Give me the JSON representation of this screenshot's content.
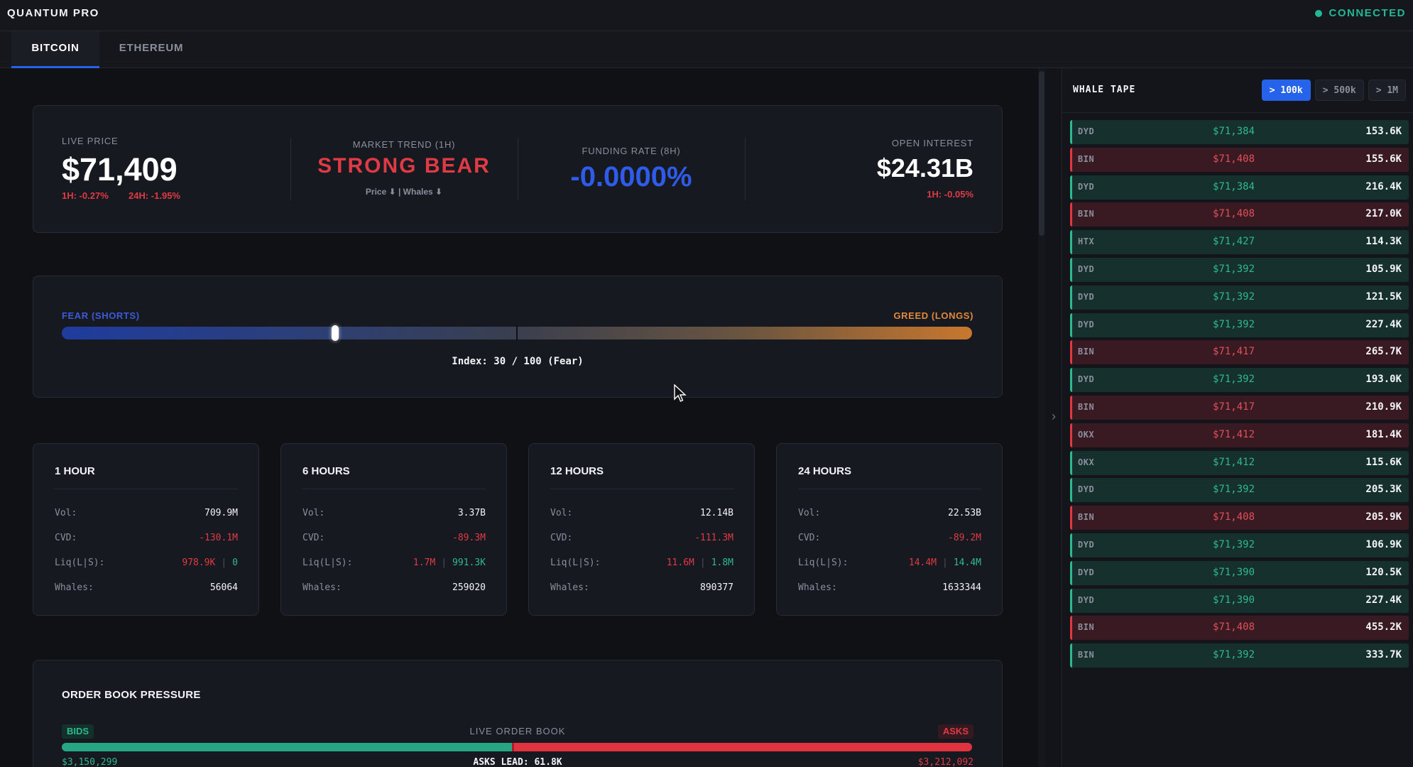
{
  "app": {
    "title": "QUANTUM PRO",
    "status": "CONNECTED"
  },
  "tabs": [
    {
      "label": "BITCOIN",
      "active": true
    },
    {
      "label": "ETHEREUM",
      "active": false
    }
  ],
  "stats": {
    "live_price_label": "LIVE PRICE",
    "live_price": "$71,409",
    "change_1h": "1H: -0.27%",
    "change_24h": "24H: -1.95%",
    "trend_label": "MARKET TREND (1H)",
    "trend": "STRONG BEAR",
    "trend_sub": "Price ⬇ | Whales ⬇",
    "funding_label": "FUNDING RATE (8H)",
    "funding": "-0.0000%",
    "oi_label": "OPEN INTEREST",
    "oi": "$24.31B",
    "oi_change": "1H: -0.05%"
  },
  "sentiment": {
    "fear_label": "FEAR (SHORTS)",
    "greed_label": "GREED (LONGS)",
    "index_text": "Index: 30 / 100 (Fear)",
    "index_value": 30
  },
  "timeframes": [
    {
      "title": "1 HOUR",
      "vol_key": "Vol:",
      "vol": "709.9M",
      "cvd_key": "CVD:",
      "cvd": "-130.1M",
      "liq_key": "Liq(L|S):",
      "liq_long": "978.9K",
      "liq_short": "0",
      "whales_key": "Whales:",
      "whales": "56064"
    },
    {
      "title": "6 HOURS",
      "vol_key": "Vol:",
      "vol": "3.37B",
      "cvd_key": "CVD:",
      "cvd": "-89.3M",
      "liq_key": "Liq(L|S):",
      "liq_long": "1.7M",
      "liq_short": "991.3K",
      "whales_key": "Whales:",
      "whales": "259020"
    },
    {
      "title": "12 HOURS",
      "vol_key": "Vol:",
      "vol": "12.14B",
      "cvd_key": "CVD:",
      "cvd": "-111.3M",
      "liq_key": "Liq(L|S):",
      "liq_long": "11.6M",
      "liq_short": "1.8M",
      "whales_key": "Whales:",
      "whales": "890377"
    },
    {
      "title": "24 HOURS",
      "vol_key": "Vol:",
      "vol": "22.53B",
      "cvd_key": "CVD:",
      "cvd": "-89.2M",
      "liq_key": "Liq(L|S):",
      "liq_long": "14.4M",
      "liq_short": "14.4M",
      "whales_key": "Whales:",
      "whales": "1633344"
    }
  ],
  "orderbook": {
    "title": "ORDER BOOK PRESSURE",
    "bids_label": "BIDS",
    "asks_label": "ASKS",
    "center_label": "LIVE ORDER BOOK",
    "bids_total": "$3,150,299",
    "asks_total": "$3,212,092",
    "lead_text": "ASKS LEAD: 61.8K",
    "bids_fraction": 0.495
  },
  "whale_tape": {
    "title": "WHALE TAPE",
    "filters": [
      {
        "label": "> 100k",
        "active": true
      },
      {
        "label": "> 500k",
        "active": false
      },
      {
        "label": "> 1M",
        "active": false
      }
    ],
    "rows": [
      {
        "ex": "DYD",
        "price": "$71,384",
        "size": "153.6K",
        "side": "buy"
      },
      {
        "ex": "BIN",
        "price": "$71,408",
        "size": "155.6K",
        "side": "sell"
      },
      {
        "ex": "DYD",
        "price": "$71,384",
        "size": "216.4K",
        "side": "buy"
      },
      {
        "ex": "BIN",
        "price": "$71,408",
        "size": "217.0K",
        "side": "sell"
      },
      {
        "ex": "HTX",
        "price": "$71,427",
        "size": "114.3K",
        "side": "buy"
      },
      {
        "ex": "DYD",
        "price": "$71,392",
        "size": "105.9K",
        "side": "buy"
      },
      {
        "ex": "DYD",
        "price": "$71,392",
        "size": "121.5K",
        "side": "buy"
      },
      {
        "ex": "DYD",
        "price": "$71,392",
        "size": "227.4K",
        "side": "buy"
      },
      {
        "ex": "BIN",
        "price": "$71,417",
        "size": "265.7K",
        "side": "sell"
      },
      {
        "ex": "DYD",
        "price": "$71,392",
        "size": "193.0K",
        "side": "buy"
      },
      {
        "ex": "BIN",
        "price": "$71,417",
        "size": "210.9K",
        "side": "sell"
      },
      {
        "ex": "OKX",
        "price": "$71,412",
        "size": "181.4K",
        "side": "sell"
      },
      {
        "ex": "OKX",
        "price": "$71,412",
        "size": "115.6K",
        "side": "buy"
      },
      {
        "ex": "DYD",
        "price": "$71,392",
        "size": "205.3K",
        "side": "buy"
      },
      {
        "ex": "BIN",
        "price": "$71,408",
        "size": "205.9K",
        "side": "sell"
      },
      {
        "ex": "DYD",
        "price": "$71,392",
        "size": "106.9K",
        "side": "buy"
      },
      {
        "ex": "DYD",
        "price": "$71,390",
        "size": "120.5K",
        "side": "buy"
      },
      {
        "ex": "DYD",
        "price": "$71,390",
        "size": "227.4K",
        "side": "buy"
      },
      {
        "ex": "BIN",
        "price": "$71,408",
        "size": "455.2K",
        "side": "sell"
      },
      {
        "ex": "BIN",
        "price": "$71,392",
        "size": "333.7K",
        "side": "buy"
      }
    ]
  },
  "colors": {
    "accent": "#2563eb",
    "bull": "#2fb98f",
    "bear": "#e03a45",
    "greed": "#e08a3c",
    "fear": "#3b5bdb"
  }
}
